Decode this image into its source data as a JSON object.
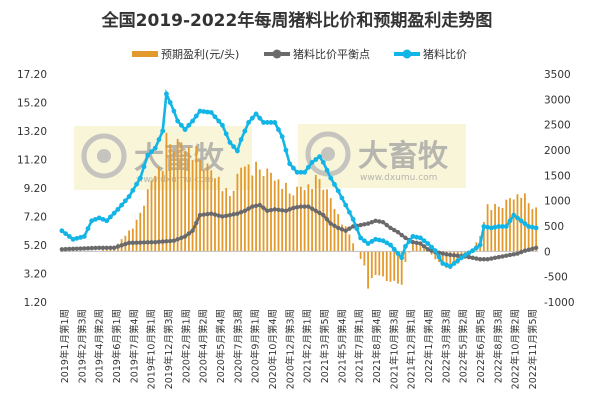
{
  "chart_data": {
    "title": "全国2019-2022年每周猪料比价和预期盈利走势图",
    "legend": [
      "预期盈利(元/头)",
      "猪料比价平衡点",
      "猪料比价"
    ],
    "left_axis": {
      "ticks": [
        "17.20",
        "15.20",
        "13.20",
        "11.20",
        "9.20",
        "7.20",
        "5.20",
        "3.20",
        "1.20"
      ],
      "range": [
        1.2,
        17.2
      ]
    },
    "right_axis": {
      "ticks": [
        "3500",
        "3000",
        "2500",
        "2000",
        "1500",
        "1000",
        "500",
        "0",
        "-500",
        "-1000"
      ],
      "range": [
        -1000,
        3500
      ]
    },
    "x_ticks": [
      "2019年1月第1周",
      "2019年2月第3周",
      "2019年4月第2周",
      "2019年6月第1周",
      "2019年7月第4周",
      "2019年10月第1周",
      "2019年12月第3周",
      "2020年2月第1周",
      "2020年4月第2周",
      "2020年5月第4周",
      "2020年7月第3周",
      "2020年9月第1周",
      "2020年10月第4周",
      "2020年12月第3周",
      "2021年2月第1周",
      "2021年3月第5周",
      "2021年5月第4周",
      "2021年7月第1周",
      "2021年8月第4周",
      "2021年10月第3周",
      "2021年12月第1周",
      "2022年1月第4周",
      "2022年3月第3周",
      "2022年5月第2周",
      "2022年6月第5周",
      "2022年8月第3周",
      "2022年10月第2周",
      "2022年11月第5周"
    ],
    "ratio_keys": [
      [
        0,
        6.2
      ],
      [
        3,
        5.6
      ],
      [
        6,
        5.8
      ],
      [
        8,
        6.9
      ],
      [
        10,
        7.1
      ],
      [
        12,
        6.9
      ],
      [
        15,
        7.7
      ],
      [
        18,
        8.6
      ],
      [
        21,
        9.9
      ],
      [
        23,
        11.5
      ],
      [
        25,
        12.0
      ],
      [
        27,
        13.2
      ],
      [
        28,
        15.8
      ],
      [
        30,
        14.6
      ],
      [
        31,
        13.9
      ],
      [
        33,
        13.3
      ],
      [
        35,
        13.9
      ],
      [
        37,
        14.6
      ],
      [
        40,
        14.5
      ],
      [
        43,
        13.6
      ],
      [
        45,
        12.4
      ],
      [
        47,
        11.8
      ],
      [
        48,
        12.6
      ],
      [
        50,
        13.8
      ],
      [
        52,
        14.4
      ],
      [
        54,
        13.8
      ],
      [
        57,
        13.8
      ],
      [
        59,
        12.8
      ],
      [
        61,
        10.9
      ],
      [
        63,
        10.3
      ],
      [
        65,
        10.3
      ],
      [
        67,
        11.0
      ],
      [
        69,
        11.4
      ],
      [
        70,
        11.0
      ],
      [
        72,
        9.9
      ],
      [
        74,
        9.0
      ],
      [
        76,
        8.0
      ],
      [
        78,
        7.0
      ],
      [
        80,
        5.7
      ],
      [
        82,
        5.3
      ],
      [
        84,
        5.6
      ],
      [
        86,
        5.5
      ],
      [
        88,
        5.2
      ],
      [
        90,
        4.6
      ],
      [
        91,
        4.3
      ],
      [
        92,
        5.1
      ],
      [
        94,
        5.8
      ],
      [
        96,
        5.7
      ],
      [
        98,
        5.3
      ],
      [
        100,
        4.8
      ],
      [
        102,
        3.9
      ],
      [
        104,
        3.7
      ],
      [
        106,
        4.1
      ],
      [
        108,
        4.5
      ],
      [
        110,
        4.8
      ],
      [
        112,
        5.2
      ],
      [
        113,
        6.5
      ],
      [
        115,
        6.4
      ],
      [
        117,
        6.5
      ],
      [
        119,
        6.5
      ],
      [
        121,
        7.3
      ],
      [
        123,
        6.9
      ],
      [
        125,
        6.5
      ],
      [
        127,
        6.4
      ]
    ],
    "breakeven_keys": [
      [
        0,
        4.9
      ],
      [
        10,
        5.0
      ],
      [
        14,
        5.0
      ],
      [
        18,
        5.35
      ],
      [
        25,
        5.4
      ],
      [
        30,
        5.5
      ],
      [
        33,
        5.8
      ],
      [
        35,
        6.2
      ],
      [
        37,
        7.3
      ],
      [
        40,
        7.4
      ],
      [
        43,
        7.2
      ],
      [
        45,
        7.3
      ],
      [
        47,
        7.4
      ],
      [
        49,
        7.6
      ],
      [
        51,
        7.9
      ],
      [
        53,
        8.0
      ],
      [
        55,
        7.6
      ],
      [
        57,
        7.7
      ],
      [
        60,
        7.6
      ],
      [
        62,
        7.8
      ],
      [
        64,
        7.9
      ],
      [
        66,
        7.9
      ],
      [
        68,
        7.6
      ],
      [
        70,
        7.3
      ],
      [
        72,
        6.7
      ],
      [
        74,
        6.4
      ],
      [
        76,
        6.2
      ],
      [
        78,
        6.5
      ],
      [
        80,
        6.6
      ],
      [
        82,
        6.7
      ],
      [
        84,
        6.9
      ],
      [
        86,
        6.8
      ],
      [
        88,
        6.4
      ],
      [
        90,
        6.1
      ],
      [
        92,
        5.7
      ],
      [
        94,
        5.4
      ],
      [
        96,
        5.3
      ],
      [
        98,
        4.9
      ],
      [
        100,
        4.7
      ],
      [
        102,
        4.6
      ],
      [
        104,
        4.5
      ],
      [
        106,
        4.45
      ],
      [
        108,
        4.4
      ],
      [
        110,
        4.3
      ],
      [
        112,
        4.2
      ],
      [
        114,
        4.2
      ],
      [
        116,
        4.3
      ],
      [
        118,
        4.4
      ],
      [
        120,
        4.5
      ],
      [
        122,
        4.6
      ],
      [
        124,
        4.8
      ],
      [
        127,
        5.0
      ]
    ],
    "profit_keys": [
      [
        0,
        0
      ],
      [
        10,
        10
      ],
      [
        15,
        150
      ],
      [
        20,
        600
      ],
      [
        23,
        1200
      ],
      [
        25,
        1600
      ],
      [
        27,
        1800
      ],
      [
        28,
        2250
      ],
      [
        30,
        2200
      ],
      [
        32,
        2150
      ],
      [
        34,
        2100
      ],
      [
        36,
        2000
      ],
      [
        38,
        1800
      ],
      [
        40,
        1600
      ],
      [
        42,
        1500
      ],
      [
        44,
        1200
      ],
      [
        45,
        1150
      ],
      [
        47,
        1500
      ],
      [
        49,
        1800
      ],
      [
        51,
        1700
      ],
      [
        53,
        1700
      ],
      [
        55,
        1600
      ],
      [
        57,
        1500
      ],
      [
        59,
        1400
      ],
      [
        61,
        1200
      ],
      [
        63,
        1250
      ],
      [
        65,
        1300
      ],
      [
        67,
        1400
      ],
      [
        69,
        1500
      ],
      [
        71,
        1200
      ],
      [
        73,
        900
      ],
      [
        75,
        600
      ],
      [
        77,
        350
      ],
      [
        79,
        0
      ],
      [
        81,
        -300
      ],
      [
        82,
        -750
      ],
      [
        84,
        -450
      ],
      [
        86,
        -550
      ],
      [
        88,
        -600
      ],
      [
        90,
        -650
      ],
      [
        91,
        -750
      ],
      [
        92,
        -200
      ],
      [
        94,
        150
      ],
      [
        96,
        100
      ],
      [
        98,
        0
      ],
      [
        100,
        -150
      ],
      [
        102,
        -300
      ],
      [
        104,
        -350
      ],
      [
        106,
        -250
      ],
      [
        108,
        -100
      ],
      [
        110,
        50
      ],
      [
        112,
        300
      ],
      [
        114,
        950
      ],
      [
        116,
        900
      ],
      [
        118,
        950
      ],
      [
        120,
        1050
      ],
      [
        122,
        1150
      ],
      [
        123,
        1200
      ],
      [
        125,
        1000
      ],
      [
        127,
        850
      ]
    ]
  },
  "watermark": {
    "brand_cn": "大畜牧",
    "url": "www.dxumu.com"
  },
  "colors": {
    "profit_bar": "#e39a2c",
    "breakeven_line": "#6a6a6a",
    "ratio_line": "#12b5e6",
    "axis": "#bfbfbf"
  }
}
